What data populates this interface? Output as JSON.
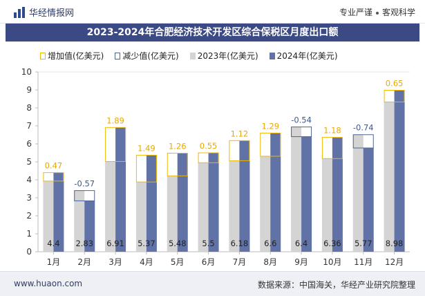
{
  "header": {
    "brand": "华经情报网",
    "slogan_left": "专业严谨",
    "slogan_right": "客观科学"
  },
  "title": "2023-2024年合肥经济技术开发区综合保税区月度出口额",
  "legend": [
    "增加值(亿美元)",
    "减少值(亿美元)",
    "2023年(亿美元)",
    "2024年(亿美元)"
  ],
  "colors": {
    "y2023": "#d4d4d4",
    "y2024": "#6173a6",
    "increase": "#f0b800",
    "decrease": "#4a6394",
    "inc_label": "#e8a800",
    "dec_label": "#3f5888"
  },
  "chart_data": {
    "type": "bar",
    "categories": [
      "1月",
      "2月",
      "3月",
      "4月",
      "5月",
      "6月",
      "7月",
      "8月",
      "9月",
      "10月",
      "11月",
      "12月"
    ],
    "series": [
      {
        "name": "2023年(亿美元)",
        "values": [
          3.93,
          3.4,
          5.02,
          3.88,
          4.22,
          4.95,
          5.06,
          5.31,
          6.94,
          5.18,
          6.51,
          8.33
        ]
      },
      {
        "name": "2024年(亿美元)",
        "values": [
          4.4,
          2.83,
          6.91,
          5.37,
          5.48,
          5.5,
          6.18,
          6.6,
          6.4,
          6.36,
          5.77,
          8.98
        ]
      }
    ],
    "change_labels": [
      "0.47",
      "-0.57",
      "1.89",
      "1.49",
      "1.26",
      "0.55",
      "1.12",
      "1.29",
      "-0.54",
      "1.18",
      "-0.74",
      "0.65"
    ],
    "value_labels_2024": [
      "4.4",
      "2.83",
      "6.91",
      "5.37",
      "5.48",
      "5.5",
      "6.18",
      "6.6",
      "6.4",
      "6.36",
      "5.77",
      "8.98"
    ],
    "ylim": [
      0,
      10
    ],
    "yticks": [
      "0",
      "1",
      "2",
      "3",
      "4",
      "5",
      "6",
      "7",
      "8",
      "9",
      "10"
    ]
  },
  "footer": {
    "url": "www.huaon.com",
    "source": "数据来源：中国海关，华经产业研究院整理"
  }
}
